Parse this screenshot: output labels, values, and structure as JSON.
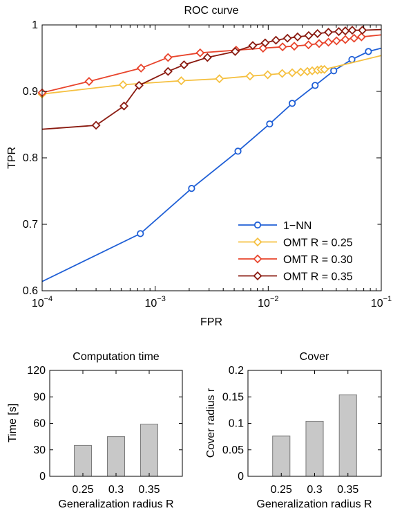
{
  "chart_data": [
    {
      "type": "line",
      "title": "ROC curve",
      "xlabel": "FPR",
      "ylabel": "TPR",
      "xscale": "log",
      "xlim": [
        0.0001,
        0.1
      ],
      "ylim": [
        0.6,
        1.0
      ],
      "x_ticks": [
        {
          "value": 0.0001,
          "base": "10",
          "exp": "−4"
        },
        {
          "value": 0.001,
          "base": "10",
          "exp": "−3"
        },
        {
          "value": 0.01,
          "base": "10",
          "exp": "−2"
        },
        {
          "value": 0.1,
          "base": "10",
          "exp": "−1"
        }
      ],
      "y_ticks": [
        {
          "value": 0.6,
          "label": "0.6"
        },
        {
          "value": 0.7,
          "label": "0.7"
        },
        {
          "value": 0.8,
          "label": "0.8"
        },
        {
          "value": 0.9,
          "label": "0.9"
        },
        {
          "value": 1.0,
          "label": "1"
        }
      ],
      "grid": false,
      "legend_position": "bottom-right",
      "series": [
        {
          "name": "1−NN",
          "color": "#1f5fd6",
          "marker": "circle",
          "points": [
            [
              0.0001,
              0.614
            ],
            [
              0.00074,
              0.686
            ],
            [
              0.0021,
              0.754
            ],
            [
              0.0054,
              0.81
            ],
            [
              0.0103,
              0.851
            ],
            [
              0.0163,
              0.882
            ],
            [
              0.026,
              0.909
            ],
            [
              0.038,
              0.931
            ],
            [
              0.055,
              0.948
            ],
            [
              0.077,
              0.96
            ],
            [
              0.1,
              0.965
            ]
          ],
          "markers": [
            [
              0.00074,
              0.686
            ],
            [
              0.0021,
              0.754
            ],
            [
              0.0054,
              0.81
            ],
            [
              0.0103,
              0.851
            ],
            [
              0.0163,
              0.882
            ],
            [
              0.026,
              0.909
            ],
            [
              0.038,
              0.931
            ],
            [
              0.055,
              0.948
            ],
            [
              0.077,
              0.96
            ]
          ]
        },
        {
          "name": "OMT R = 0.25",
          "color": "#f5c040",
          "marker": "diamond",
          "points": [
            [
              0.0001,
              0.896
            ],
            [
              0.00052,
              0.91
            ],
            [
              0.0017,
              0.916
            ],
            [
              0.0037,
              0.919
            ],
            [
              0.0069,
              0.923
            ],
            [
              0.0099,
              0.925
            ],
            [
              0.0133,
              0.927
            ],
            [
              0.0163,
              0.928
            ],
            [
              0.0194,
              0.929
            ],
            [
              0.0222,
              0.93
            ],
            [
              0.0245,
              0.931
            ],
            [
              0.0273,
              0.932
            ],
            [
              0.0294,
              0.933
            ],
            [
              0.0314,
              0.933
            ],
            [
              0.1,
              0.954
            ]
          ],
          "markers": [
            [
              0.0001,
              0.896
            ],
            [
              0.00052,
              0.91
            ],
            [
              0.0017,
              0.916
            ],
            [
              0.0037,
              0.919
            ],
            [
              0.0069,
              0.923
            ],
            [
              0.0099,
              0.925
            ],
            [
              0.0133,
              0.927
            ],
            [
              0.0163,
              0.928
            ],
            [
              0.0194,
              0.929
            ],
            [
              0.0222,
              0.93
            ],
            [
              0.0245,
              0.931
            ],
            [
              0.0273,
              0.932
            ],
            [
              0.0294,
              0.933
            ],
            [
              0.0314,
              0.933
            ]
          ]
        },
        {
          "name": "OMT R = 0.30",
          "color": "#e8442c",
          "marker": "diamond",
          "points": [
            [
              0.0001,
              0.898
            ],
            [
              0.00026,
              0.915
            ],
            [
              0.00075,
              0.935
            ],
            [
              0.0013,
              0.951
            ],
            [
              0.0025,
              0.958
            ],
            [
              0.0052,
              0.962
            ],
            [
              0.009,
              0.965
            ],
            [
              0.0134,
              0.967
            ],
            [
              0.017,
              0.968
            ],
            [
              0.0227,
              0.97
            ],
            [
              0.0282,
              0.972
            ],
            [
              0.0341,
              0.974
            ],
            [
              0.0402,
              0.976
            ],
            [
              0.0481,
              0.978
            ],
            [
              0.0575,
              0.98
            ],
            [
              0.0668,
              0.982
            ],
            [
              0.1,
              0.985
            ]
          ],
          "markers": [
            [
              0.0001,
              0.898
            ],
            [
              0.00026,
              0.915
            ],
            [
              0.00075,
              0.935
            ],
            [
              0.0013,
              0.951
            ],
            [
              0.0025,
              0.958
            ],
            [
              0.0052,
              0.962
            ],
            [
              0.009,
              0.965
            ],
            [
              0.0134,
              0.967
            ],
            [
              0.017,
              0.968
            ],
            [
              0.0227,
              0.97
            ],
            [
              0.0282,
              0.972
            ],
            [
              0.0341,
              0.974
            ],
            [
              0.0402,
              0.976
            ],
            [
              0.0481,
              0.978
            ],
            [
              0.0575,
              0.98
            ],
            [
              0.0668,
              0.982
            ]
          ]
        },
        {
          "name": "OMT R = 0.35",
          "color": "#8a1a10",
          "marker": "diamond",
          "points": [
            [
              0.0001,
              0.843
            ],
            [
              0.0003,
              0.849
            ],
            [
              0.00053,
              0.878
            ],
            [
              0.00072,
              0.909
            ],
            [
              0.0013,
              0.93
            ],
            [
              0.0018,
              0.94
            ],
            [
              0.0029,
              0.951
            ],
            [
              0.0051,
              0.96
            ],
            [
              0.0073,
              0.969
            ],
            [
              0.0094,
              0.973
            ],
            [
              0.0117,
              0.977
            ],
            [
              0.0148,
              0.98
            ],
            [
              0.0182,
              0.982
            ],
            [
              0.0228,
              0.984
            ],
            [
              0.0273,
              0.987
            ],
            [
              0.0341,
              0.989
            ],
            [
              0.0421,
              0.99
            ],
            [
              0.0481,
              0.991
            ],
            [
              0.0554,
              0.992
            ],
            [
              0.0681,
              0.992
            ],
            [
              0.1,
              0.993
            ]
          ],
          "markers": [
            [
              0.0003,
              0.849
            ],
            [
              0.00053,
              0.878
            ],
            [
              0.00072,
              0.909
            ],
            [
              0.0013,
              0.93
            ],
            [
              0.0018,
              0.94
            ],
            [
              0.0029,
              0.951
            ],
            [
              0.0051,
              0.96
            ],
            [
              0.0073,
              0.969
            ],
            [
              0.0094,
              0.973
            ],
            [
              0.0117,
              0.977
            ],
            [
              0.0148,
              0.98
            ],
            [
              0.0182,
              0.982
            ],
            [
              0.0228,
              0.984
            ],
            [
              0.0273,
              0.987
            ],
            [
              0.0341,
              0.989
            ],
            [
              0.0421,
              0.99
            ],
            [
              0.0481,
              0.991
            ],
            [
              0.0554,
              0.992
            ],
            [
              0.0681,
              0.992
            ]
          ]
        }
      ]
    },
    {
      "type": "bar",
      "title": "Computation time",
      "xlabel": "Generalization radius R",
      "ylabel": "Time [s]",
      "categories": [
        "0.25",
        "0.3",
        "0.35"
      ],
      "values": [
        35,
        45,
        59
      ],
      "ylim": [
        0,
        120
      ],
      "y_ticks": [
        "0",
        "30",
        "60",
        "90",
        "120"
      ],
      "bar_color": "#c8c8c8",
      "grid": false
    },
    {
      "type": "bar",
      "title": "Cover",
      "xlabel": "Generalization radius R",
      "ylabel": "Cover radius r",
      "categories": [
        "0.25",
        "0.3",
        "0.35"
      ],
      "values": [
        0.076,
        0.104,
        0.154
      ],
      "ylim": [
        0,
        0.2
      ],
      "y_ticks": [
        "0",
        "0.05",
        "0.1",
        "0.15",
        "0.2"
      ],
      "bar_color": "#c8c8c8",
      "grid": false
    }
  ]
}
